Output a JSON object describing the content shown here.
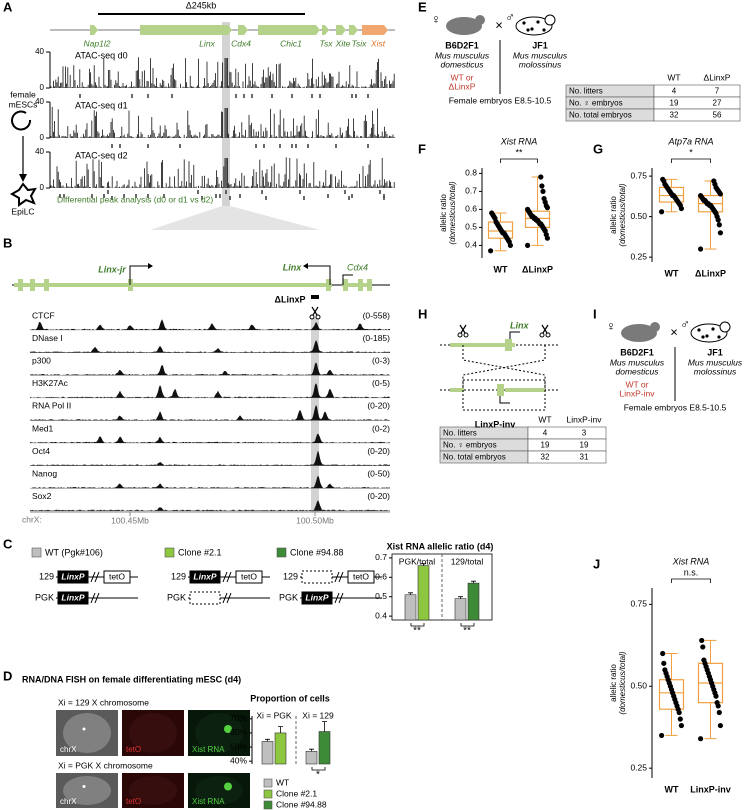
{
  "panels": {
    "A": {
      "label": "A",
      "deletion": "Δ245kb",
      "genes": [
        "Nap1l2",
        "Linx",
        "Cdx4",
        "Chic1",
        "Tsx",
        "Xite",
        "Tsix",
        "Xist"
      ],
      "cells": {
        "start": [
          "female",
          "mESCs"
        ],
        "end": "EpiLC"
      },
      "tracks": [
        "ATAC-seq d0",
        "ATAC-seq d1",
        "ATAC-seq d2"
      ],
      "ylim": [
        0,
        40
      ],
      "yticks": [
        0,
        40
      ],
      "diff_label": "Differential peak analysis (d0 or d1 vs d2)"
    },
    "B": {
      "label": "B",
      "genes": [
        "Linx-jr",
        "Linx",
        "Cdx4"
      ],
      "deletion": "ΔLinxP",
      "tracks": [
        {
          "name": "CTCF",
          "range": "(0-558)"
        },
        {
          "name": "DNase I",
          "range": "(0-185)"
        },
        {
          "name": "p300",
          "range": "(0-3)"
        },
        {
          "name": "H3K27Ac",
          "range": "(0-5)"
        },
        {
          "name": "RNA Pol II",
          "range": "(0-20)"
        },
        {
          "name": "Med1",
          "range": "(0-2)"
        },
        {
          "name": "Oct4",
          "range": "(0-20)"
        },
        {
          "name": "Nanog",
          "range": "(0-50)"
        },
        {
          "name": "Sox2",
          "range": "(0-20)"
        }
      ],
      "axis": {
        "chrom": "chrX:",
        "ticks": [
          "100.45Mb",
          "100.50Mb"
        ]
      }
    },
    "C": {
      "label": "C",
      "legend": [
        "WT (Pgk#106)",
        "Clone #2.1",
        "Clone #94.88"
      ],
      "alleles": [
        "129",
        "PGK"
      ],
      "elements": [
        "LinxP",
        "tetO"
      ],
      "chart": {
        "type": "bar",
        "title": "Xist RNA allelic ratio (d4)",
        "groups": [
          "PGK/total",
          "129/total"
        ],
        "bars": [
          [
            {
              "value": 0.51,
              "error": 0.01,
              "color": "#bfbfbf"
            },
            {
              "value": 0.66,
              "error": 0.01,
              "color": "#8dc63f"
            }
          ],
          [
            {
              "value": 0.49,
              "error": 0.01,
              "color": "#bfbfbf"
            },
            {
              "value": 0.57,
              "error": 0.01,
              "color": "#3d8b37"
            }
          ]
        ],
        "significance": [
          "**",
          "**"
        ],
        "ylim": [
          0.38,
          0.72
        ],
        "yticks": [
          0.4,
          0.5,
          0.6,
          0.7
        ]
      }
    },
    "D": {
      "label": "D",
      "title": "RNA/DNA FISH on female differentiating mESC (d4)",
      "rows": [
        "Xi = 129 X chromosome",
        "Xi = PGK X chromosome"
      ],
      "channels": [
        "chrX",
        "tetO",
        "Xist RNA"
      ],
      "chart": {
        "type": "bar",
        "title": "Proportion of cells",
        "groups": [
          "Xi = PGK",
          "Xi = 129"
        ],
        "bars": [
          [
            {
              "value": 54,
              "error": 1.5,
              "color": "#bfbfbf"
            },
            {
              "value": 60,
              "error": 4.5,
              "color": "#8dc63f"
            }
          ],
          [
            {
              "value": 47,
              "error": 1.5,
              "color": "#bfbfbf"
            },
            {
              "value": 61,
              "error": 7,
              "color": "#3d8b37"
            }
          ]
        ],
        "significance": {
          "group": 1,
          "label": "*"
        },
        "ylim": [
          38,
          72
        ],
        "yticks": [
          {
            "value": 40,
            "label": "40%"
          },
          {
            "value": 50,
            "label": "50%"
          },
          {
            "value": 60,
            "label": "60%"
          },
          {
            "value": 70,
            "label": "70%"
          }
        ],
        "legend": [
          {
            "name": "WT",
            "color": "#bfbfbf"
          },
          {
            "name": "Clone #2.1",
            "color": "#8dc63f"
          },
          {
            "name": "Clone #94.88",
            "color": "#3d8b37"
          }
        ]
      }
    },
    "E": {
      "label": "E",
      "cross": "×",
      "mother": {
        "symbol": "♀",
        "strain": "B6D2F1",
        "species": [
          "Mus musculus",
          "domesticus"
        ],
        "genotype": [
          "WT or",
          "ΔLinxP"
        ]
      },
      "father": {
        "symbol": "♂",
        "strain": "JF1",
        "species": [
          "Mus musculus",
          "molossinus"
        ]
      },
      "embryos": "Female embryos E8.5-10.5",
      "table": {
        "columns": [
          "WT",
          "ΔLinxP"
        ],
        "rows": [
          {
            "label": "No. litters",
            "values": [
              4,
              7
            ]
          },
          {
            "label": "No. ♀ embryos",
            "values": [
              19,
              27
            ]
          },
          {
            "label": "No. total embryos",
            "values": [
              32,
              56
            ]
          }
        ]
      }
    },
    "F": {
      "label": "F",
      "chart": {
        "type": "box",
        "title": "Xist RNA",
        "significance": "**",
        "ylabel": [
          "allelic ratio",
          "(domesticus/total)"
        ],
        "categories": [
          "WT",
          "ΔLinxP"
        ],
        "ylim": [
          0.33,
          0.83
        ],
        "yticks": [
          0.4,
          0.5,
          0.6,
          0.7,
          0.8
        ],
        "boxes": [
          {
            "whisker": [
              0.37,
              0.58
            ],
            "quartiles": [
              0.44,
              0.48,
              0.53
            ],
            "points": [
              0.37,
              0.4,
              0.42,
              0.43,
              0.44,
              0.45,
              0.46,
              0.47,
              0.47,
              0.48,
              0.49,
              0.5,
              0.51,
              0.52,
              0.53,
              0.55,
              0.56,
              0.57,
              0.58
            ]
          },
          {
            "whisker": [
              0.4,
              0.78
            ],
            "quartiles": [
              0.5,
              0.55,
              0.59
            ],
            "points": [
              0.4,
              0.44,
              0.46,
              0.48,
              0.49,
              0.5,
              0.51,
              0.52,
              0.52,
              0.53,
              0.54,
              0.54,
              0.55,
              0.55,
              0.56,
              0.56,
              0.57,
              0.58,
              0.59,
              0.6,
              0.61,
              0.62,
              0.64,
              0.66,
              0.7,
              0.73,
              0.78
            ]
          }
        ]
      }
    },
    "G": {
      "label": "G",
      "chart": {
        "type": "box",
        "title": "Atp7a RNA",
        "significance": "*",
        "ylabel": [
          "allelic ratio",
          "(domesticus/total)"
        ],
        "categories": [
          "WT",
          "ΔLinxP"
        ],
        "ylim": [
          0.22,
          0.8
        ],
        "yticks": [
          0.25,
          {
            "value": 0.5,
            "label": "0.50"
          },
          0.75
        ],
        "boxes": [
          {
            "whisker": [
              0.53,
              0.73
            ],
            "quartiles": [
              0.59,
              0.63,
              0.68
            ],
            "points": [
              0.53,
              0.55,
              0.57,
              0.58,
              0.59,
              0.6,
              0.61,
              0.62,
              0.63,
              0.63,
              0.64,
              0.65,
              0.66,
              0.67,
              0.68,
              0.69,
              0.7,
              0.72,
              0.73
            ]
          },
          {
            "whisker": [
              0.3,
              0.72
            ],
            "quartiles": [
              0.53,
              0.58,
              0.63
            ],
            "points": [
              0.3,
              0.4,
              0.45,
              0.48,
              0.5,
              0.52,
              0.53,
              0.54,
              0.55,
              0.56,
              0.57,
              0.57,
              0.58,
              0.58,
              0.59,
              0.6,
              0.6,
              0.61,
              0.62,
              0.63,
              0.64,
              0.65,
              0.66,
              0.67,
              0.68,
              0.7,
              0.72
            ]
          }
        ]
      }
    },
    "H": {
      "label": "H",
      "gene": "Linx",
      "construct": "LinxP-inv"
    },
    "I": {
      "label": "I",
      "cross": "×",
      "mother": {
        "symbol": "♀",
        "strain": "B6D2F1",
        "species": [
          "Mus musculus",
          "domesticus"
        ],
        "genotype": [
          "WT or",
          "LinxP-inv"
        ]
      },
      "father": {
        "symbol": "♂",
        "strain": "JF1",
        "species": [
          "Mus musculus",
          "molossinus"
        ]
      },
      "embryos": "Female embryos E8.5-10.5",
      "table": {
        "columns": [
          "WT",
          "LinxP-inv"
        ],
        "rows": [
          {
            "label": "No. litters",
            "values": [
              4,
              3
            ]
          },
          {
            "label": "No. ♀ embryos",
            "values": [
              19,
              19
            ]
          },
          {
            "label": "No. total embryos",
            "values": [
              32,
              31
            ]
          }
        ]
      }
    },
    "J": {
      "label": "J",
      "chart": {
        "type": "box",
        "title": "Xist RNA",
        "significance": "n.s.",
        "ylabel": [
          "allelic ratio",
          "(domesticus/total)"
        ],
        "categories": [
          "WT",
          "LinxP-inv"
        ],
        "ylim": [
          0.22,
          0.8
        ],
        "yticks": [
          0.25,
          {
            "value": 0.5,
            "label": "0.50"
          },
          0.75
        ],
        "boxes": [
          {
            "whisker": [
              0.35,
              0.6
            ],
            "quartiles": [
              0.43,
              0.48,
              0.52
            ],
            "points": [
              0.35,
              0.38,
              0.4,
              0.42,
              0.43,
              0.44,
              0.45,
              0.46,
              0.47,
              0.48,
              0.49,
              0.5,
              0.51,
              0.52,
              0.53,
              0.54,
              0.55,
              0.57,
              0.6
            ]
          },
          {
            "whisker": [
              0.34,
              0.64
            ],
            "quartiles": [
              0.45,
              0.51,
              0.57
            ],
            "points": [
              0.34,
              0.38,
              0.42,
              0.44,
              0.45,
              0.47,
              0.48,
              0.49,
              0.5,
              0.51,
              0.52,
              0.53,
              0.54,
              0.55,
              0.56,
              0.57,
              0.58,
              0.62,
              0.64
            ]
          }
        ]
      }
    }
  }
}
